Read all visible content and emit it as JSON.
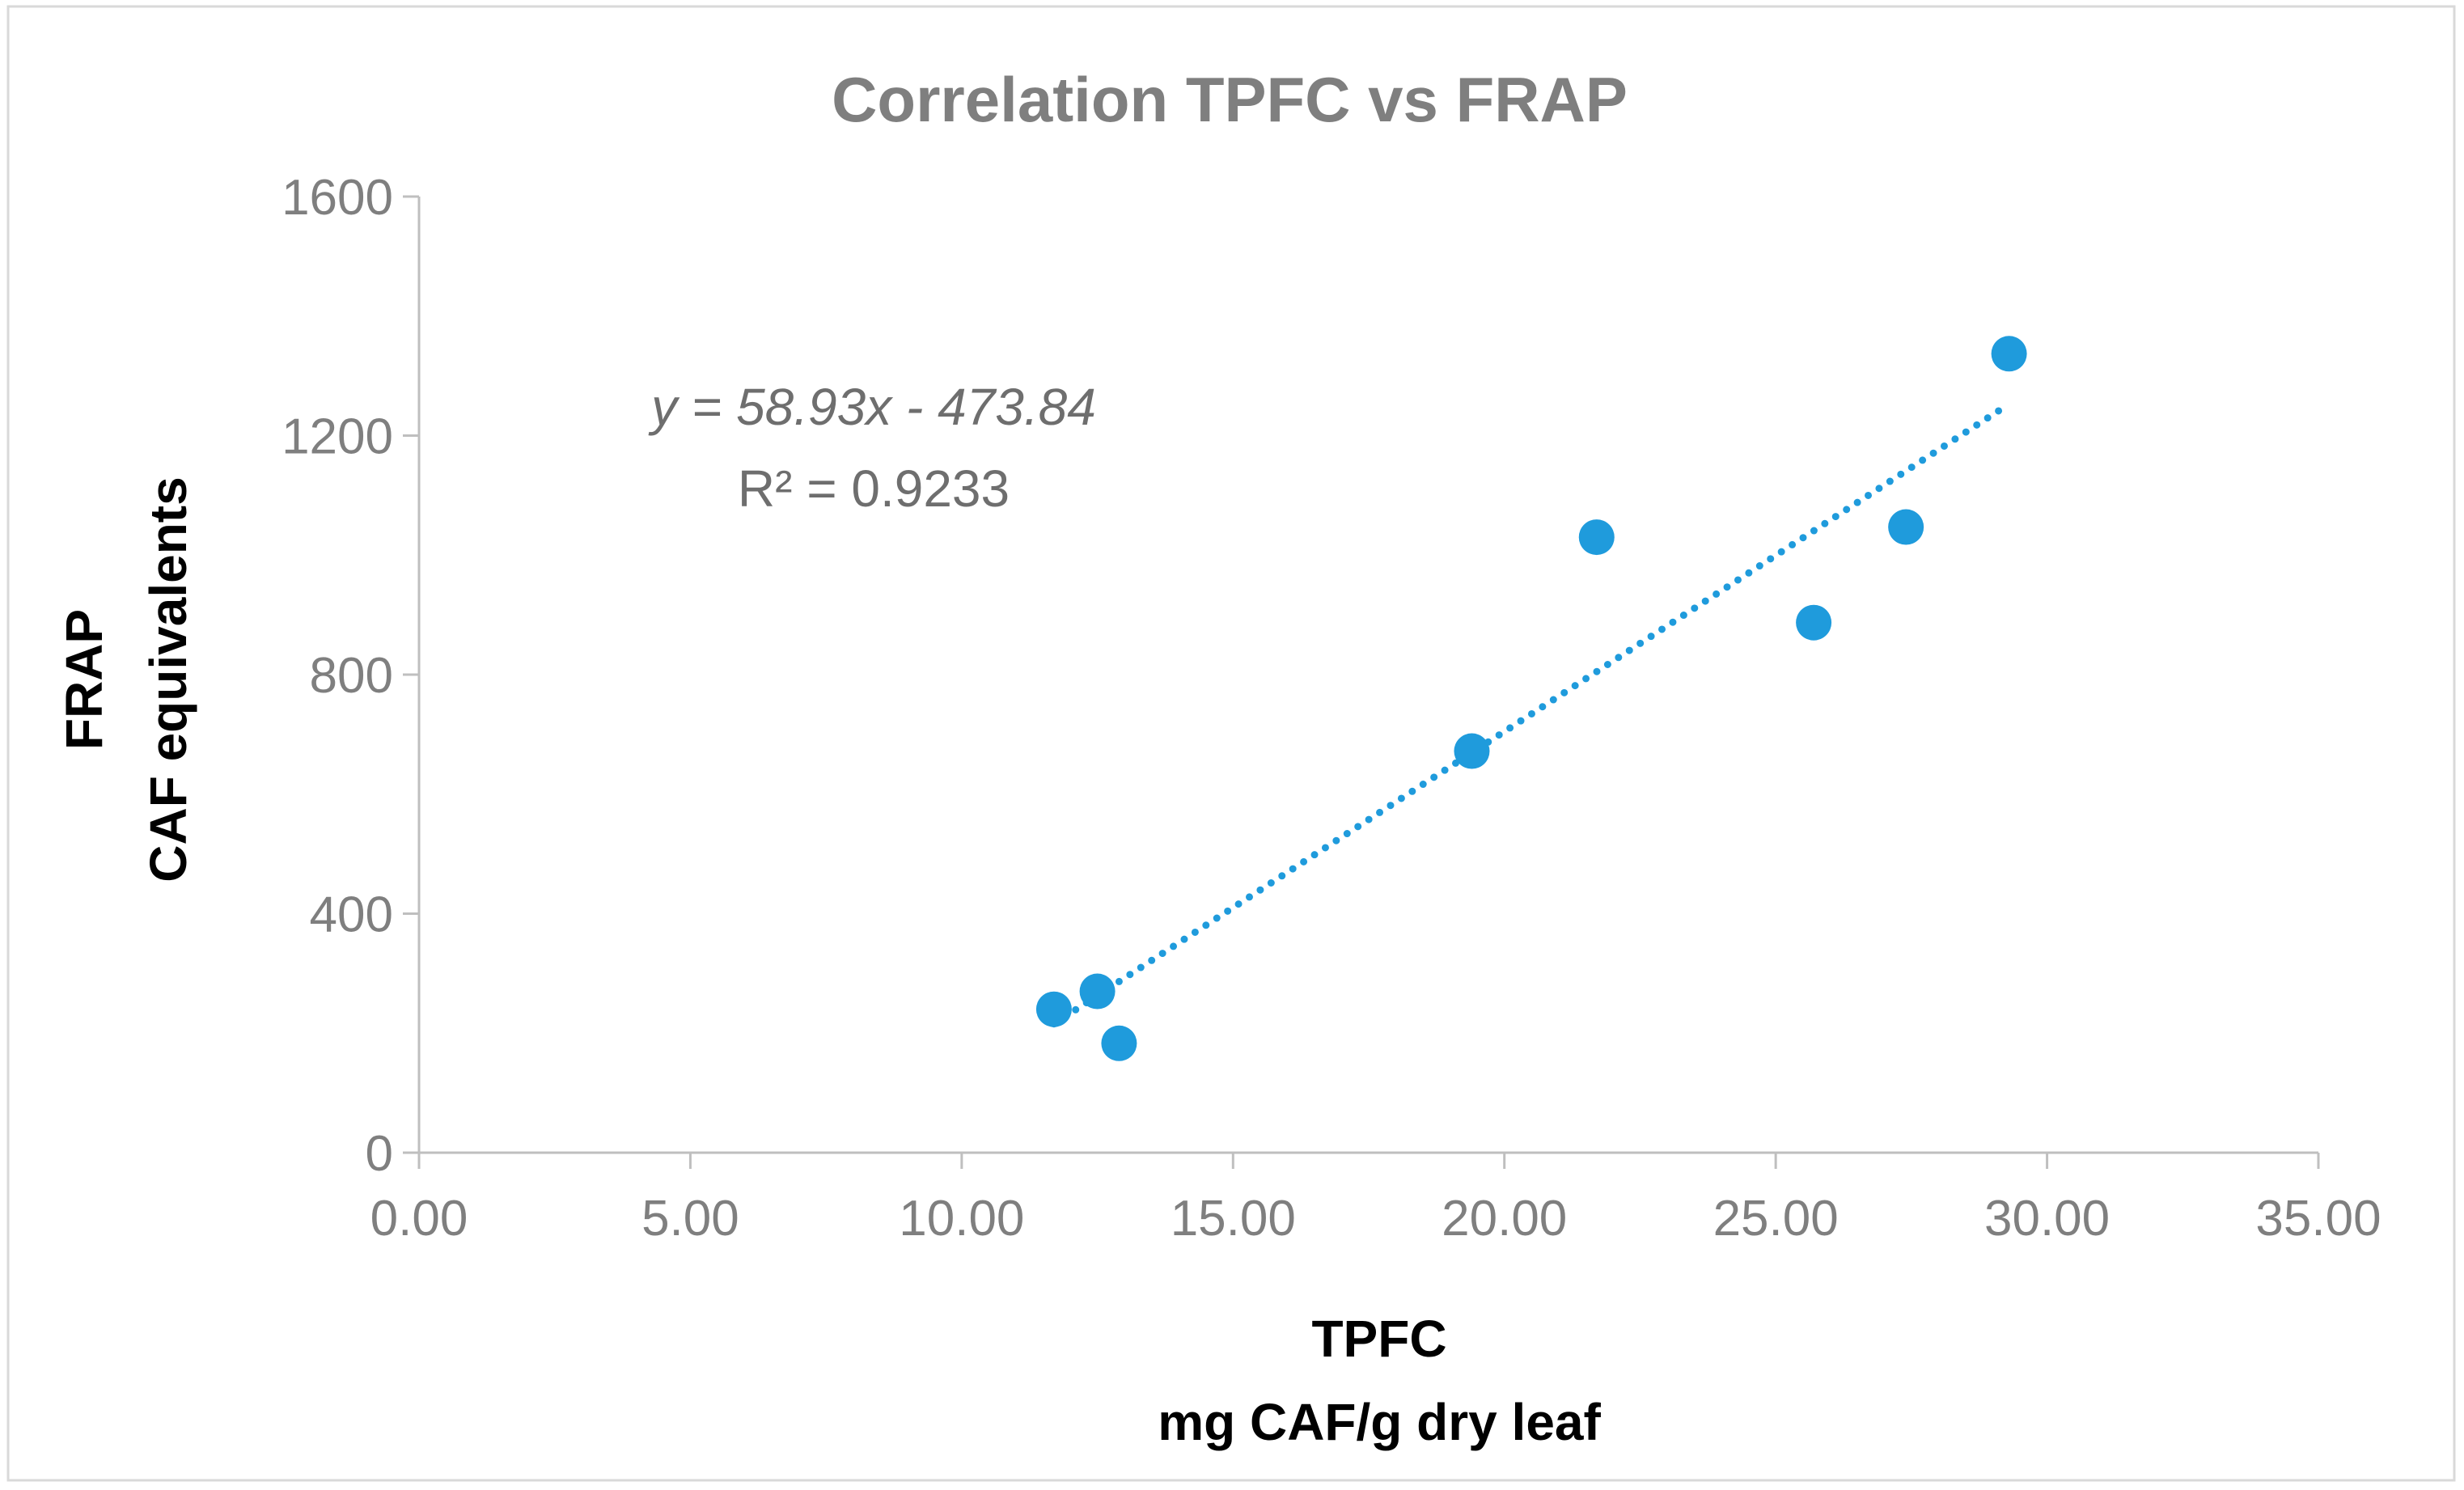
{
  "chart_data": {
    "type": "scatter",
    "title": "Correlation TPFC vs FRAP",
    "xlabel_lines": [
      "TPFC",
      "mg CAF/g dry leaf"
    ],
    "ylabel_lines": [
      "FRAP",
      "CAF equivalents"
    ],
    "xlim": [
      0,
      35
    ],
    "ylim": [
      0,
      1600
    ],
    "x_ticks": [
      0,
      5,
      10,
      15,
      20,
      25,
      30,
      35
    ],
    "x_tick_labels": [
      "0.00",
      "5.00",
      "10.00",
      "15.00",
      "20.00",
      "25.00",
      "30.00",
      "35.00"
    ],
    "y_ticks": [
      0,
      400,
      800,
      1200,
      1600
    ],
    "y_tick_labels": [
      "0",
      "400",
      "800",
      "1200",
      "1600"
    ],
    "grid": false,
    "series": [
      {
        "name": "FRAP",
        "color": "#1f9bdc",
        "points": [
          {
            "x": 11.7,
            "y": 240
          },
          {
            "x": 12.5,
            "y": 270
          },
          {
            "x": 12.9,
            "y": 183
          },
          {
            "x": 19.4,
            "y": 672
          },
          {
            "x": 21.7,
            "y": 1030
          },
          {
            "x": 25.7,
            "y": 887
          },
          {
            "x": 27.4,
            "y": 1047
          },
          {
            "x": 29.3,
            "y": 1337
          }
        ]
      }
    ],
    "trendline": {
      "type": "linear",
      "style": "dotted",
      "color": "#1f9bdc",
      "slope": 58.93,
      "intercept": -473.84,
      "x_range": [
        11.7,
        29.3
      ],
      "equation_text": "y = 58.93x - 473.84",
      "r2_text": "R² = 0.9233"
    }
  }
}
